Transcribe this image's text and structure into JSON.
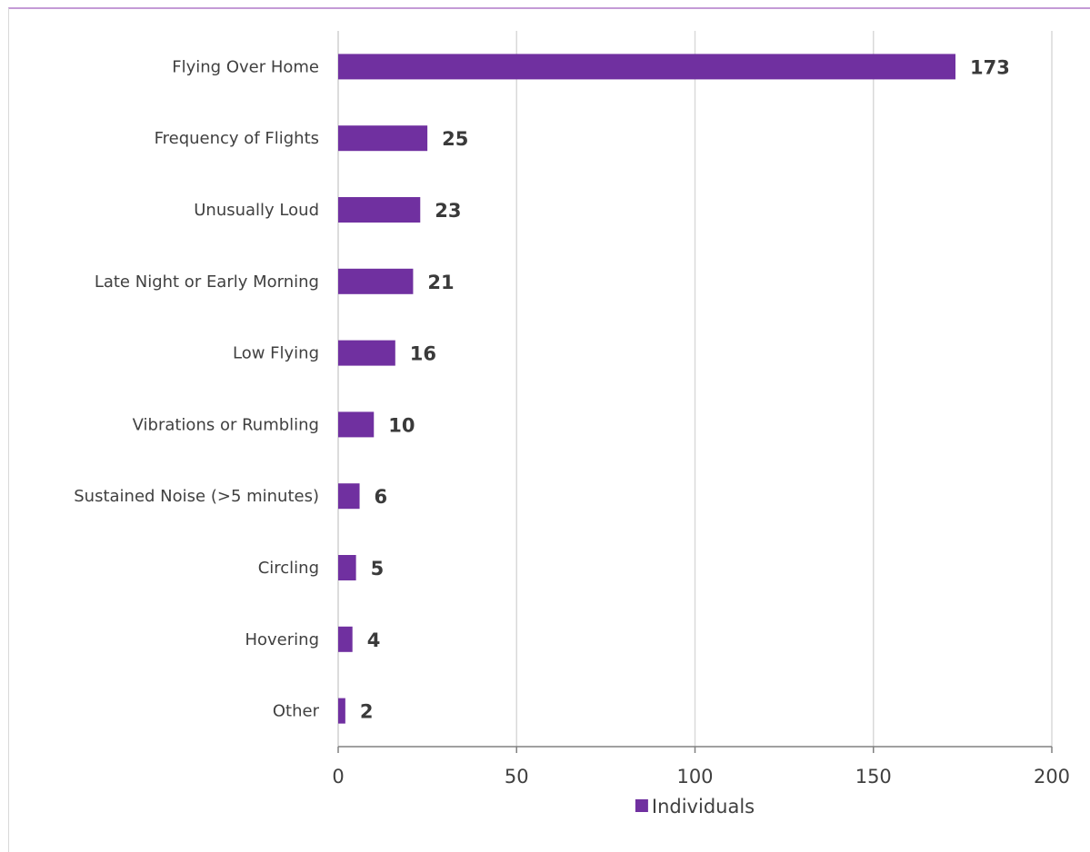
{
  "chart_data": {
    "type": "bar",
    "orientation": "horizontal",
    "categories": [
      "Flying Over Home",
      "Frequency of Flights",
      "Unusually Loud",
      "Late Night or Early Morning",
      "Low Flying",
      "Vibrations or Rumbling",
      "Sustained Noise (>5 minutes)",
      "Circling",
      "Hovering",
      "Other"
    ],
    "series": [
      {
        "name": "Individuals",
        "values": [
          173,
          25,
          23,
          21,
          16,
          10,
          6,
          5,
          4,
          2
        ],
        "color": "#7030a0"
      }
    ],
    "xlim": [
      0,
      200
    ],
    "xticks": [
      "0",
      "50",
      "100",
      "150",
      "200"
    ],
    "grid": "vertical",
    "data_labels": true,
    "legend_position": "bottom",
    "title": "",
    "xlabel": "",
    "ylabel": ""
  }
}
